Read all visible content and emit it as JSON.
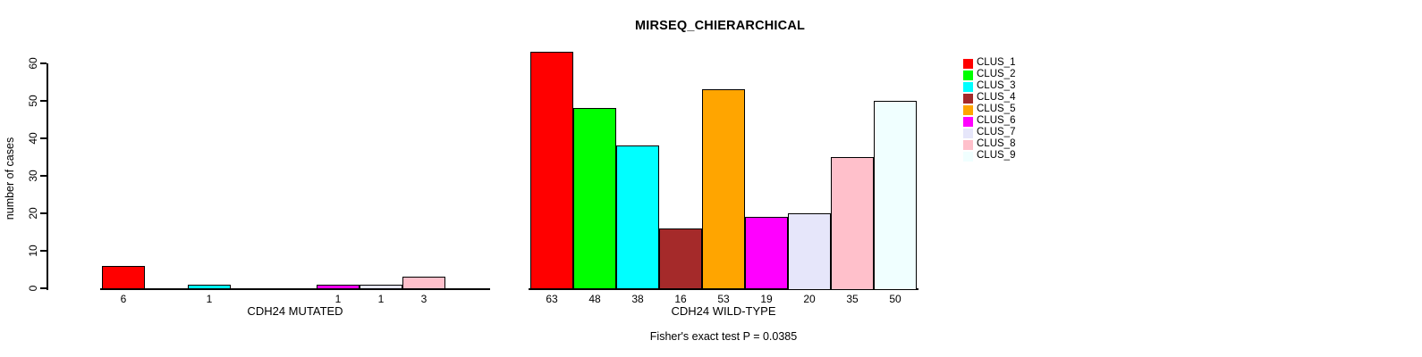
{
  "chart_data": {
    "type": "bar",
    "title": "MIRSEQ_CHIERARCHICAL",
    "ylabel": "number of cases",
    "ylim": [
      0,
      63
    ],
    "yticks": [
      0,
      10,
      20,
      30,
      40,
      50,
      60
    ],
    "grid": false,
    "legend_position": "right",
    "categories": [
      "CLUS_1",
      "CLUS_2",
      "CLUS_3",
      "CLUS_4",
      "CLUS_5",
      "CLUS_6",
      "CLUS_7",
      "CLUS_8",
      "CLUS_9"
    ],
    "colors": [
      "#FF0000",
      "#00FF00",
      "#00FFFF",
      "#A52A2A",
      "#FFA500",
      "#FF00FF",
      "#E6E6FA",
      "#FFC0CB",
      "#F0FFFF"
    ],
    "groups": [
      {
        "xlabel": "CDH24 MUTATED",
        "values": [
          6,
          0,
          1,
          0,
          0,
          1,
          1,
          3,
          0
        ],
        "bar_labels": [
          "6",
          "",
          "1",
          "",
          "",
          "1",
          "1",
          "3",
          ""
        ]
      },
      {
        "xlabel": "CDH24 WILD-TYPE",
        "values": [
          63,
          48,
          38,
          16,
          53,
          19,
          20,
          35,
          50
        ],
        "bar_labels": [
          "63",
          "48",
          "38",
          "16",
          "53",
          "19",
          "20",
          "35",
          "50"
        ]
      }
    ],
    "annotation": "Fisher's exact test P = 0.0385"
  }
}
